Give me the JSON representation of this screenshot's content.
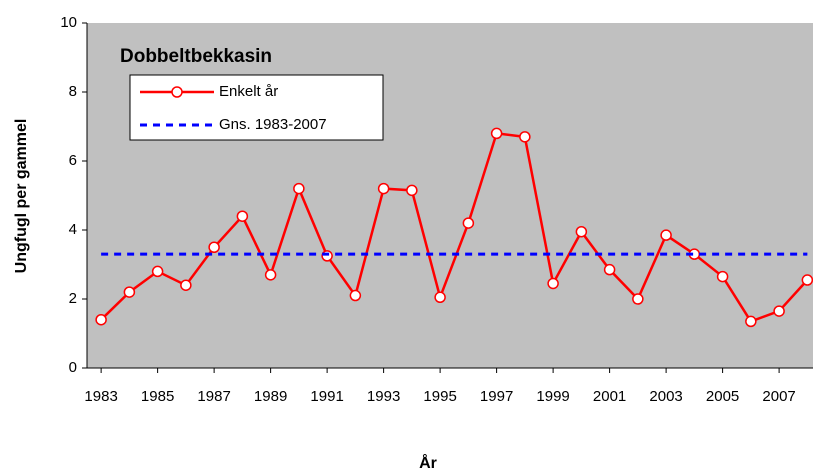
{
  "chart_data": {
    "type": "line",
    "title": "Dobbeltbekkasin",
    "x_label": "År",
    "y_label": "Ungfugl per gammel",
    "x": [
      1983,
      1984,
      1985,
      1986,
      1987,
      1988,
      1989,
      1990,
      1991,
      1992,
      1993,
      1994,
      1995,
      1996,
      1997,
      1998,
      1999,
      2000,
      2001,
      2002,
      2003,
      2004,
      2005,
      2006,
      2007,
      2008
    ],
    "series": [
      {
        "name": "Enkelt år",
        "color": "#ff0000",
        "style": "solid",
        "markers": true,
        "values": [
          1.4,
          2.2,
          2.8,
          2.4,
          3.5,
          4.4,
          2.7,
          5.2,
          3.25,
          2.1,
          5.2,
          5.15,
          2.05,
          4.2,
          6.8,
          6.7,
          2.45,
          3.95,
          2.85,
          2.0,
          3.85,
          3.3,
          2.65,
          1.35,
          1.65,
          2.55
        ]
      },
      {
        "name": "Gns. 1983-2007",
        "color": "#0000ff",
        "style": "dashed",
        "markers": false,
        "values": [
          3.3,
          3.3,
          3.3,
          3.3,
          3.3,
          3.3,
          3.3,
          3.3,
          3.3,
          3.3,
          3.3,
          3.3,
          3.3,
          3.3,
          3.3,
          3.3,
          3.3,
          3.3,
          3.3,
          3.3,
          3.3,
          3.3,
          3.3,
          3.3,
          3.3,
          3.3
        ]
      }
    ],
    "xlim": [
      1982.5,
      2008.2
    ],
    "xticks": [
      1983,
      1985,
      1987,
      1989,
      1991,
      1993,
      1995,
      1997,
      1999,
      2001,
      2003,
      2005,
      2007
    ],
    "ylim": [
      0,
      10
    ],
    "yticks": [
      0,
      2,
      4,
      6,
      8,
      10
    ],
    "plot_background": "#c0c0c0",
    "legend": "upper left"
  }
}
